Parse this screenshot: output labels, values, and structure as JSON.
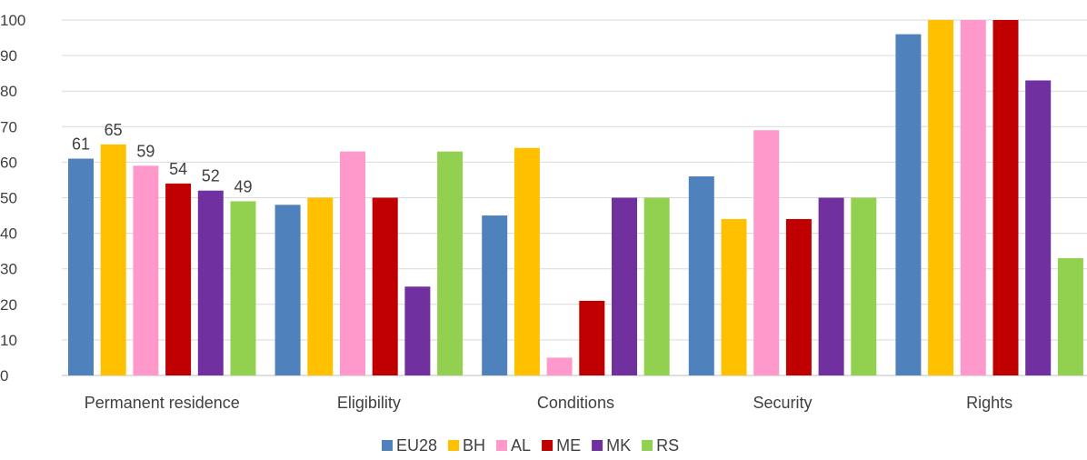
{
  "chart_data": {
    "type": "bar",
    "categories": [
      "Permanent residence",
      "Eligibility",
      "Conditions",
      "Security",
      "Rights"
    ],
    "series": [
      {
        "name": "EU28",
        "color": "#4f81bd",
        "values": [
          61,
          48,
          45,
          56,
          96
        ]
      },
      {
        "name": "BH",
        "color": "#ffc000",
        "values": [
          65,
          50,
          64,
          44,
          100
        ]
      },
      {
        "name": "AL",
        "color": "#ff99cc",
        "values": [
          59,
          63,
          5,
          69,
          100
        ]
      },
      {
        "name": "ME",
        "color": "#c00000",
        "values": [
          54,
          50,
          21,
          44,
          100
        ]
      },
      {
        "name": "MK",
        "color": "#7030a0",
        "values": [
          52,
          25,
          50,
          50,
          83
        ]
      },
      {
        "name": "RS",
        "color": "#92d050",
        "values": [
          49,
          63,
          50,
          50,
          33
        ]
      }
    ],
    "data_labels": {
      "category": "Permanent residence",
      "values": [
        "61",
        "65",
        "59",
        "54",
        "52",
        "49"
      ]
    },
    "yticks": [
      "0",
      "10",
      "20",
      "30",
      "40",
      "50",
      "60",
      "70",
      "80",
      "90",
      "100"
    ],
    "ylim": [
      0,
      100
    ],
    "grid": true,
    "legend_position": "bottom",
    "title": "",
    "xlabel": "",
    "ylabel": ""
  }
}
